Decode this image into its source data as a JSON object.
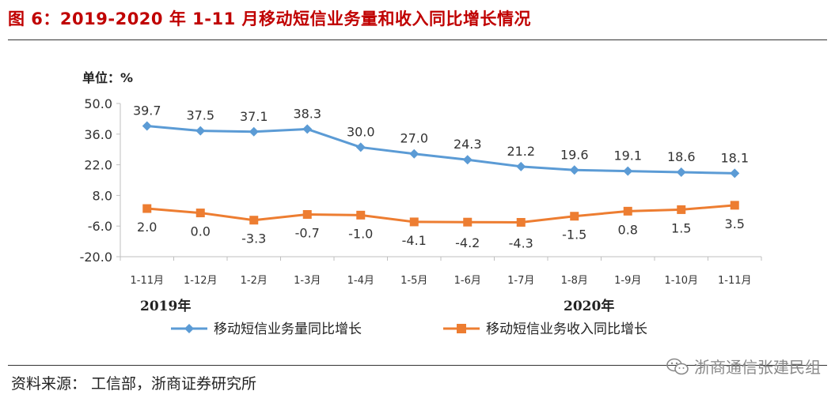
{
  "header": {
    "title": "图 6：2019-2020 年 1-11 月移动短信业务量和收入同比增长情况"
  },
  "footer": {
    "source": "资料来源： 工信部，浙商证券研究所",
    "watermark": "浙商通信张建民组"
  },
  "colors": {
    "title": "#c00000",
    "series_volume": "#5b9bd5",
    "series_revenue": "#ed7d31"
  },
  "chart_data": {
    "type": "line",
    "title": "",
    "ylabel": "单位：%",
    "categories": [
      "1-11月",
      "1-12月",
      "1-2月",
      "1-3月",
      "1-4月",
      "1-5月",
      "1-6月",
      "1-7月",
      "1-8月",
      "1-9月",
      "1-10月",
      "1-11月"
    ],
    "year_labels": [
      {
        "label": "2019年",
        "category_index": 0
      },
      {
        "label": "2020年",
        "category_index": 8
      }
    ],
    "ylim": [
      -20.0,
      50.0
    ],
    "yticks": [
      "50.0",
      "36.0",
      "22.0",
      "8.0",
      "-6.0",
      "-20.0"
    ],
    "ytick_values": [
      50,
      36,
      22,
      8,
      -6,
      -20
    ],
    "series": [
      {
        "name": "移动短信业务量同比增长",
        "values": [
          39.7,
          37.5,
          37.1,
          38.3,
          30.0,
          27.0,
          24.3,
          21.2,
          19.6,
          19.1,
          18.6,
          18.1
        ],
        "labels": [
          "39.7",
          "37.5",
          "37.1",
          "38.3",
          "30.0",
          "27.0",
          "24.3",
          "21.2",
          "19.6",
          "19.1",
          "18.6",
          "18.1"
        ],
        "marker": "diamond"
      },
      {
        "name": "移动短信业务收入同比增长",
        "values": [
          2.0,
          0.0,
          -3.3,
          -0.7,
          -1.0,
          -4.1,
          -4.2,
          -4.3,
          -1.5,
          0.8,
          1.5,
          3.5
        ],
        "labels": [
          "2.0",
          "0.0",
          "-3.3",
          "-0.7",
          "-1.0",
          "-4.1",
          "-4.2",
          "-4.3",
          "-1.5",
          "0.8",
          "1.5",
          "3.5"
        ],
        "marker": "square"
      }
    ],
    "legend_position": "bottom"
  }
}
